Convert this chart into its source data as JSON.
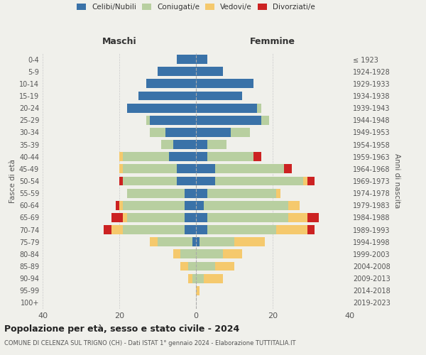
{
  "age_groups": [
    "0-4",
    "5-9",
    "10-14",
    "15-19",
    "20-24",
    "25-29",
    "30-34",
    "35-39",
    "40-44",
    "45-49",
    "50-54",
    "55-59",
    "60-64",
    "65-69",
    "70-74",
    "75-79",
    "80-84",
    "85-89",
    "90-94",
    "95-99",
    "100+"
  ],
  "birth_years": [
    "2019-2023",
    "2014-2018",
    "2009-2013",
    "2004-2008",
    "1999-2003",
    "1994-1998",
    "1989-1993",
    "1984-1988",
    "1979-1983",
    "1974-1978",
    "1969-1973",
    "1964-1968",
    "1959-1963",
    "1954-1958",
    "1949-1953",
    "1944-1948",
    "1939-1943",
    "1934-1938",
    "1929-1933",
    "1924-1928",
    "≤ 1923"
  ],
  "maschi": {
    "celibi": [
      5,
      10,
      13,
      15,
      18,
      12,
      8,
      6,
      7,
      5,
      5,
      3,
      3,
      3,
      3,
      1,
      0,
      0,
      0,
      0,
      0
    ],
    "coniugati": [
      0,
      0,
      0,
      0,
      0,
      1,
      4,
      3,
      12,
      14,
      14,
      15,
      16,
      15,
      16,
      9,
      4,
      2,
      1,
      0,
      0
    ],
    "vedovi": [
      0,
      0,
      0,
      0,
      0,
      0,
      0,
      0,
      1,
      1,
      0,
      0,
      1,
      1,
      3,
      2,
      2,
      2,
      1,
      0,
      0
    ],
    "divorziati": [
      0,
      0,
      0,
      0,
      0,
      0,
      0,
      0,
      0,
      0,
      1,
      0,
      1,
      3,
      2,
      0,
      0,
      0,
      0,
      0,
      0
    ]
  },
  "femmine": {
    "nubili": [
      3,
      7,
      15,
      12,
      16,
      17,
      9,
      3,
      3,
      5,
      5,
      3,
      2,
      3,
      3,
      1,
      0,
      0,
      0,
      0,
      0
    ],
    "coniugate": [
      0,
      0,
      0,
      0,
      1,
      2,
      5,
      5,
      12,
      18,
      23,
      18,
      22,
      21,
      18,
      9,
      7,
      5,
      2,
      0,
      0
    ],
    "vedove": [
      0,
      0,
      0,
      0,
      0,
      0,
      0,
      0,
      0,
      0,
      1,
      1,
      3,
      5,
      8,
      8,
      5,
      5,
      5,
      1,
      0
    ],
    "divorziate": [
      0,
      0,
      0,
      0,
      0,
      0,
      0,
      0,
      2,
      2,
      2,
      0,
      0,
      3,
      2,
      0,
      0,
      0,
      0,
      0,
      0
    ]
  },
  "colors": {
    "celibi": "#3a72a8",
    "coniugati": "#b8cfa0",
    "vedovi": "#f5c96d",
    "divorziati": "#cc2222"
  },
  "xlim": 40,
  "title": "Popolazione per età, sesso e stato civile - 2024",
  "subtitle": "COMUNE DI CELENZA SUL TRIGNO (CH) - Dati ISTAT 1° gennaio 2024 - Elaborazione TUTTITALIA.IT",
  "xlabel_left": "Maschi",
  "xlabel_right": "Femmine",
  "ylabel_left": "Fasce di età",
  "ylabel_right": "Anni di nascita",
  "bg_color": "#f0f0eb",
  "legend_labels": [
    "Celibi/Nubili",
    "Coniugati/e",
    "Vedovi/e",
    "Divorziati/e"
  ]
}
